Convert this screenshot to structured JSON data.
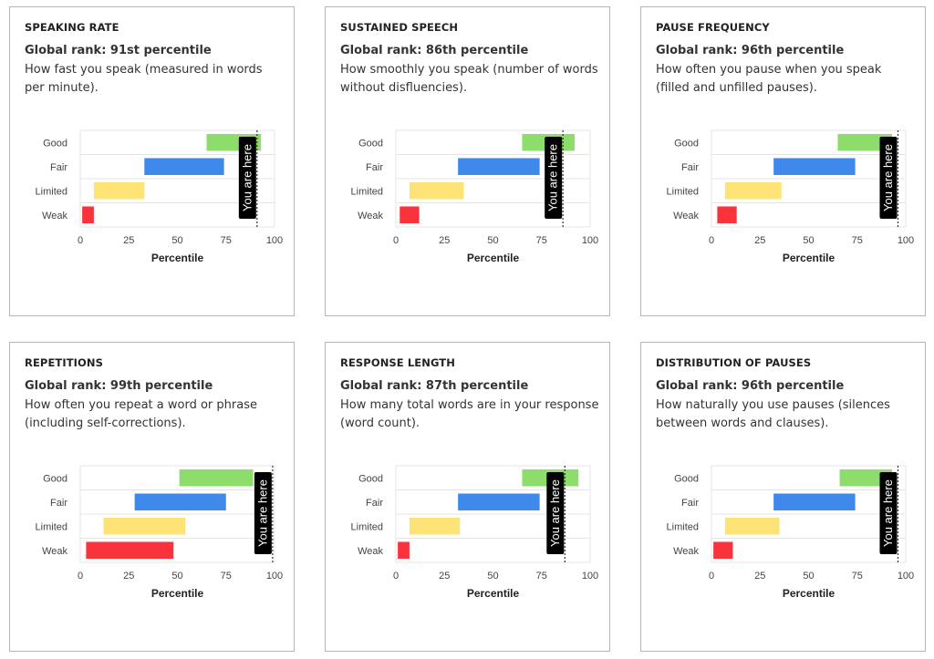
{
  "chart_defaults": {
    "categories": [
      "Good",
      "Fair",
      "Limited",
      "Weak"
    ],
    "colors": {
      "Good": "#8edd6c",
      "Fair": "#3e89ea",
      "Limited": "#fde376",
      "Weak": "#f8333b"
    },
    "x_ticks": [
      "0",
      "25",
      "50",
      "75",
      "100"
    ],
    "xlim": [
      0,
      100
    ],
    "xlabel": "Percentile",
    "marker_label": "You are here"
  },
  "cards": [
    {
      "title": "SPEAKING RATE",
      "rank": "Global rank: 91st percentile",
      "description": "How fast you speak (measured in words per minute)."
    },
    {
      "title": "SUSTAINED SPEECH",
      "rank": "Global rank: 86th percentile",
      "description": "How smoothly you speak (number of words without disfluencies)."
    },
    {
      "title": "PAUSE FREQUENCY",
      "rank": "Global rank: 96th percentile",
      "description": "How often you pause when you speak (filled and unfilled pauses)."
    },
    {
      "title": "REPETITIONS",
      "rank": "Global rank: 99th percentile",
      "description": "How often you repeat a word or phrase (including self-corrections)."
    },
    {
      "title": "RESPONSE LENGTH",
      "rank": "Global rank: 87th percentile",
      "description": "How many total words are in your response (word count)."
    },
    {
      "title": "DISTRIBUTION OF PAUSES",
      "rank": "Global rank: 96th percentile",
      "description": "How naturally you use pauses (silences between words and clauses)."
    }
  ],
  "chart_data": [
    {
      "type": "bar",
      "orientation": "horizontal-floating",
      "categories": [
        "Good",
        "Fair",
        "Limited",
        "Weak"
      ],
      "ranges": [
        [
          65,
          93
        ],
        [
          33,
          74
        ],
        [
          7,
          33
        ],
        [
          1,
          7
        ]
      ],
      "marker": 91,
      "xlabel": "Percentile",
      "xlim": [
        0,
        100
      ]
    },
    {
      "type": "bar",
      "orientation": "horizontal-floating",
      "categories": [
        "Good",
        "Fair",
        "Limited",
        "Weak"
      ],
      "ranges": [
        [
          65,
          92
        ],
        [
          32,
          74
        ],
        [
          7,
          35
        ],
        [
          2,
          12
        ]
      ],
      "marker": 86,
      "xlabel": "Percentile",
      "xlim": [
        0,
        100
      ]
    },
    {
      "type": "bar",
      "orientation": "horizontal-floating",
      "categories": [
        "Good",
        "Fair",
        "Limited",
        "Weak"
      ],
      "ranges": [
        [
          65,
          93
        ],
        [
          32,
          74
        ],
        [
          7,
          36
        ],
        [
          3,
          13
        ]
      ],
      "marker": 96,
      "xlabel": "Percentile",
      "xlim": [
        0,
        100
      ]
    },
    {
      "type": "bar",
      "orientation": "horizontal-floating",
      "categories": [
        "Good",
        "Fair",
        "Limited",
        "Weak"
      ],
      "ranges": [
        [
          51,
          89
        ],
        [
          28,
          75
        ],
        [
          12,
          54
        ],
        [
          3,
          48
        ]
      ],
      "marker": 99,
      "xlabel": "Percentile",
      "xlim": [
        0,
        100
      ]
    },
    {
      "type": "bar",
      "orientation": "horizontal-floating",
      "categories": [
        "Good",
        "Fair",
        "Limited",
        "Weak"
      ],
      "ranges": [
        [
          65,
          94
        ],
        [
          32,
          74
        ],
        [
          7,
          33
        ],
        [
          1,
          7
        ]
      ],
      "marker": 87,
      "xlabel": "Percentile",
      "xlim": [
        0,
        100
      ]
    },
    {
      "type": "bar",
      "orientation": "horizontal-floating",
      "categories": [
        "Good",
        "Fair",
        "Limited",
        "Weak"
      ],
      "ranges": [
        [
          66,
          93
        ],
        [
          32,
          74
        ],
        [
          7,
          35
        ],
        [
          1,
          11
        ]
      ],
      "marker": 96,
      "xlabel": "Percentile",
      "xlim": [
        0,
        100
      ]
    }
  ]
}
